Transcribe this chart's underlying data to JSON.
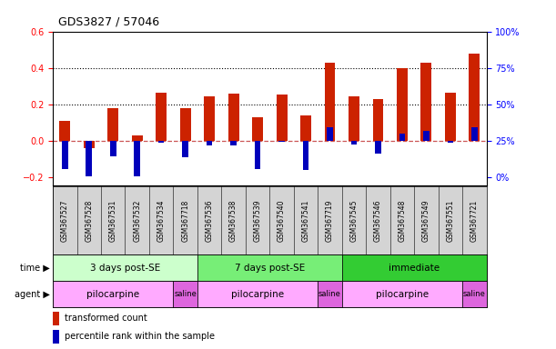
{
  "title": "GDS3827 / 57046",
  "samples": [
    "GSM367527",
    "GSM367528",
    "GSM367531",
    "GSM367532",
    "GSM367534",
    "GSM367718",
    "GSM367536",
    "GSM367538",
    "GSM367539",
    "GSM367540",
    "GSM367541",
    "GSM367719",
    "GSM367545",
    "GSM367546",
    "GSM367548",
    "GSM367549",
    "GSM367551",
    "GSM367721"
  ],
  "red_values": [
    0.11,
    -0.04,
    0.18,
    0.03,
    0.265,
    0.18,
    0.245,
    0.26,
    0.13,
    0.255,
    0.14,
    0.43,
    0.245,
    0.23,
    0.4,
    0.43,
    0.265,
    0.48
  ],
  "blue_values": [
    -0.155,
    -0.195,
    -0.085,
    -0.195,
    -0.01,
    -0.09,
    -0.025,
    -0.025,
    -0.155,
    -0.005,
    -0.16,
    0.075,
    -0.02,
    -0.07,
    0.04,
    0.055,
    -0.01,
    0.075
  ],
  "ylim": [
    -0.24,
    0.6
  ],
  "yticks_left": [
    -0.2,
    0.0,
    0.2,
    0.4,
    0.6
  ],
  "yticks_right_positions": [
    -0.2,
    0.0,
    0.2,
    0.4,
    0.6
  ],
  "yticks_right_labels": [
    "0%",
    "25%",
    "50%",
    "75%",
    "100%"
  ],
  "hlines": [
    0.2,
    0.4
  ],
  "bar_color_red": "#cc2200",
  "bar_color_blue": "#0000bb",
  "zero_line_color": "#cc5555",
  "grid_color": "#000000",
  "background_color": "#ffffff",
  "sample_label_bg": "#d4d4d4",
  "time_groups": [
    {
      "label": "3 days post-SE",
      "start": 0,
      "end": 6,
      "color": "#ccffcc"
    },
    {
      "label": "7 days post-SE",
      "start": 6,
      "end": 12,
      "color": "#77ee77"
    },
    {
      "label": "immediate",
      "start": 12,
      "end": 18,
      "color": "#33cc33"
    }
  ],
  "agent_groups": [
    {
      "label": "pilocarpine",
      "start": 0,
      "end": 5,
      "color": "#ffaaff"
    },
    {
      "label": "saline",
      "start": 5,
      "end": 6,
      "color": "#dd66dd"
    },
    {
      "label": "pilocarpine",
      "start": 6,
      "end": 11,
      "color": "#ffaaff"
    },
    {
      "label": "saline",
      "start": 11,
      "end": 12,
      "color": "#dd66dd"
    },
    {
      "label": "pilocarpine",
      "start": 12,
      "end": 17,
      "color": "#ffaaff"
    },
    {
      "label": "saline",
      "start": 17,
      "end": 18,
      "color": "#dd66dd"
    }
  ],
  "legend_red": "transformed count",
  "legend_blue": "percentile rank within the sample",
  "bar_width": 0.45,
  "blue_bar_width": 0.25
}
